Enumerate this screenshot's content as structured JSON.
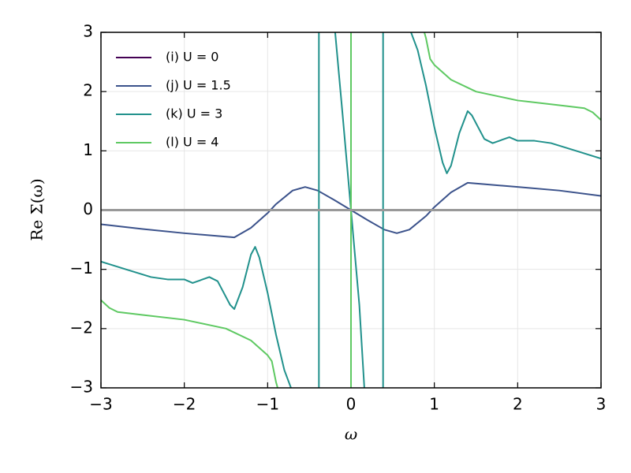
{
  "chart_data": {
    "type": "line",
    "xlabel": "ω",
    "ylabel": "Re Σ(ω)",
    "xlim": [
      -3,
      3
    ],
    "ylim": [
      -3,
      3
    ],
    "xticks": [
      {
        "value": -3,
        "label": "−3"
      },
      {
        "value": -2,
        "label": "−2"
      },
      {
        "value": -1,
        "label": "−1"
      },
      0,
      1,
      2,
      3
    ],
    "yticks": [
      {
        "value": -3,
        "label": "−3"
      },
      {
        "value": -2,
        "label": "−2"
      },
      {
        "value": -1,
        "label": "−1"
      },
      0,
      1,
      2,
      3
    ],
    "grid": true,
    "legend": "upper left",
    "hline": {
      "value": 0,
      "color": "#999999"
    },
    "series": [
      {
        "name": "(i)  U = 0",
        "color": "#440154",
        "x": [
          -3,
          3
        ],
        "values": [
          0,
          0
        ]
      },
      {
        "name": "(j)  U = 1.5",
        "color": "#3b528b",
        "x": [
          -3,
          -2.5,
          -2,
          -1.4,
          -1.2,
          -1,
          -0.9,
          -0.7,
          -0.55,
          -0.4,
          -0.2,
          0,
          0.2,
          0.4,
          0.55,
          0.7,
          0.9,
          1,
          1.2,
          1.4,
          2,
          2.5,
          3
        ],
        "values": [
          -0.24,
          -0.32,
          -0.39,
          -0.46,
          -0.3,
          -0.05,
          0.1,
          0.33,
          0.39,
          0.33,
          0.17,
          0,
          -0.17,
          -0.33,
          -0.39,
          -0.33,
          -0.1,
          0.05,
          0.3,
          0.46,
          0.39,
          0.33,
          0.24
        ]
      },
      {
        "name": "(k)  U = 3",
        "color": "#21918c",
        "x": [
          -3,
          -2.7,
          -2.4,
          -2.2,
          -2.0,
          -1.9,
          -1.7,
          -1.6,
          -1.45,
          -1.4,
          -1.3,
          -1.2,
          -1.15,
          -1.1,
          -1.0,
          -0.9,
          -0.8,
          -0.72,
          -0.6,
          -0.385,
          -0.385,
          -0.3,
          -0.19,
          -0.1,
          0,
          0.1,
          0.16,
          0.3,
          0.385,
          0.385,
          0.6,
          0.72,
          0.8,
          0.9,
          1.0,
          1.1,
          1.15,
          1.2,
          1.3,
          1.4,
          1.45,
          1.6,
          1.7,
          1.9,
          2.0,
          2.2,
          2.4,
          2.7,
          3
        ],
        "values": [
          -0.87,
          -1.0,
          -1.13,
          -1.17,
          -1.17,
          -1.23,
          -1.13,
          -1.2,
          -1.6,
          -1.67,
          -1.3,
          -0.75,
          -0.62,
          -0.8,
          -1.4,
          -2.1,
          -2.7,
          -3,
          null,
          -3,
          3,
          null,
          3,
          1.6,
          0,
          -1.6,
          -3,
          null,
          -3,
          3,
          null,
          3,
          2.7,
          2.1,
          1.4,
          0.8,
          0.62,
          0.75,
          1.3,
          1.67,
          1.6,
          1.2,
          1.13,
          1.23,
          1.17,
          1.17,
          1.13,
          1.0,
          0.87
        ]
      },
      {
        "name": "(l)  U = 4",
        "color": "#5ec962",
        "x": [
          -3,
          -2.9,
          -2.8,
          -2.5,
          -2,
          -1.5,
          -1.2,
          -1.0,
          -0.95,
          -0.9,
          -0.88,
          -0.5,
          0,
          0,
          0.5,
          0.88,
          0.9,
          0.95,
          1.0,
          1.2,
          1.5,
          2,
          2.5,
          2.8,
          2.9,
          3
        ],
        "values": [
          -1.52,
          -1.65,
          -1.72,
          -1.77,
          -1.85,
          -2.0,
          -2.2,
          -2.45,
          -2.55,
          -2.9,
          -3,
          null,
          -3,
          3,
          null,
          3,
          2.9,
          2.55,
          2.45,
          2.2,
          2.0,
          1.85,
          1.77,
          1.72,
          1.65,
          1.52
        ]
      }
    ]
  }
}
